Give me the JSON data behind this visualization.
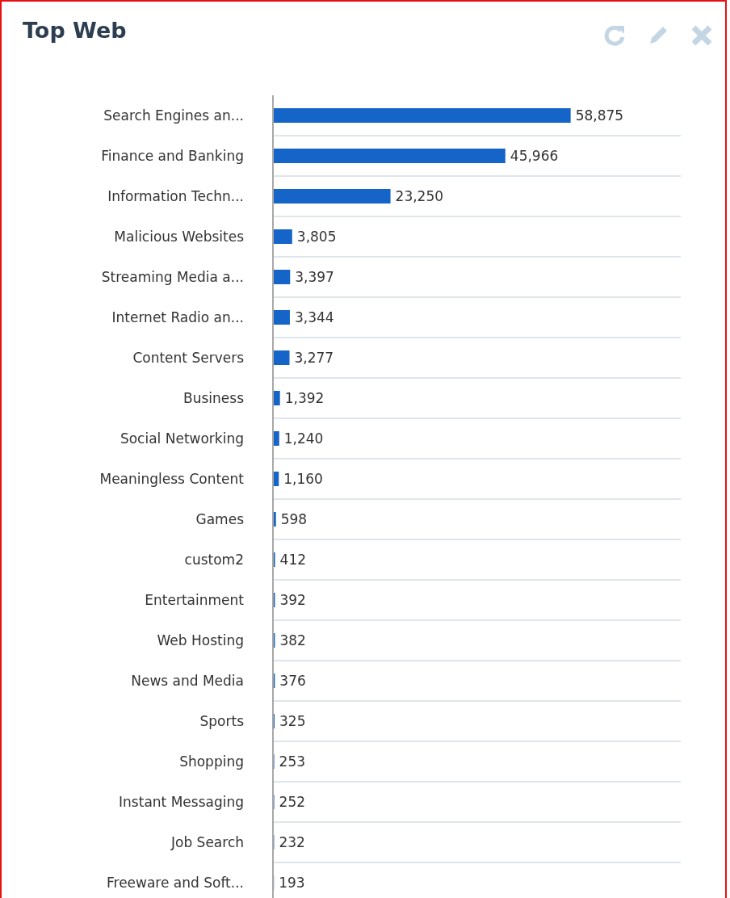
{
  "chart_data": {
    "type": "bar",
    "orientation": "horizontal",
    "title": "Top Web",
    "categories": [
      "Search Engines an...",
      "Finance and Banking",
      "Information Techn...",
      "Malicious Websites",
      "Streaming Media a...",
      "Internet Radio an...",
      "Content Servers",
      "Business",
      "Social Networking",
      "Meaningless Content",
      "Games",
      "custom2",
      "Entertainment",
      "Web Hosting",
      "News and Media",
      "Sports",
      "Shopping",
      "Instant Messaging",
      "Job Search",
      "Freeware and Soft..."
    ],
    "values": [
      58875,
      45966,
      23250,
      3805,
      3397,
      3344,
      3277,
      1392,
      1240,
      1160,
      598,
      412,
      392,
      382,
      376,
      325,
      253,
      252,
      232,
      193
    ],
    "value_labels": [
      "58,875",
      "45,966",
      "23,250",
      "3,805",
      "3,397",
      "3,344",
      "3,277",
      "1,392",
      "1,240",
      "1,160",
      "598",
      "412",
      "392",
      "382",
      "376",
      "325",
      "253",
      "252",
      "232",
      "193"
    ],
    "color": "#1565c8",
    "grid": "y"
  }
}
